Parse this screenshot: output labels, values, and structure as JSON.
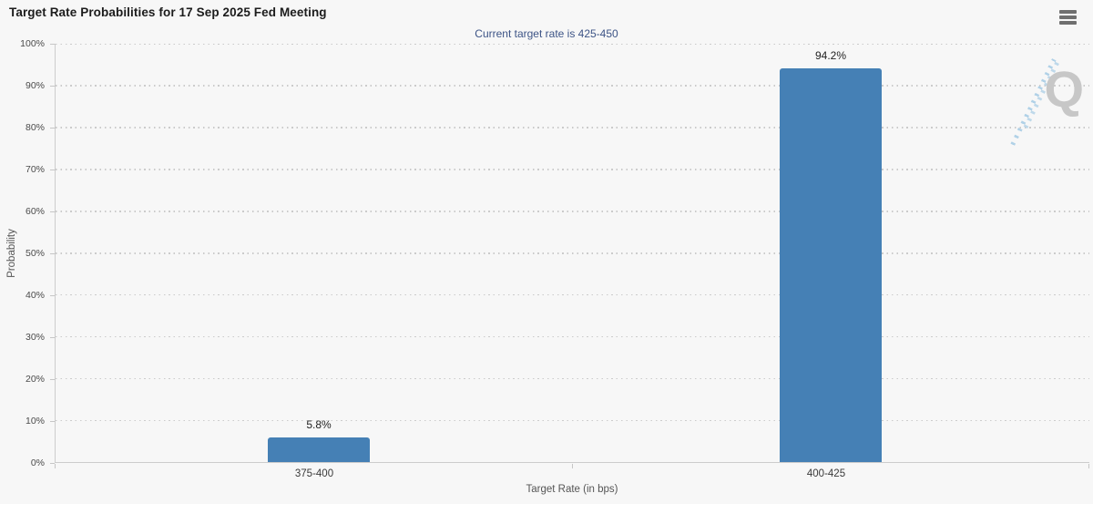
{
  "header": {
    "menu_icon": "hamburger-icon"
  },
  "chart_data": {
    "type": "bar",
    "title": "Target Rate Probabilities for 17 Sep 2025 Fed Meeting",
    "subtitle": "Current target rate is 425-450",
    "categories": [
      "375-400",
      "400-425"
    ],
    "values": [
      5.8,
      94.2
    ],
    "value_labels": [
      "5.8%",
      "94.2%"
    ],
    "xlabel": "Target Rate (in bps)",
    "ylabel": "Probability",
    "ylim": [
      0,
      100
    ],
    "ytick_step": 10,
    "yticks": [
      "0%",
      "10%",
      "20%",
      "30%",
      "40%",
      "50%",
      "60%",
      "70%",
      "80%",
      "90%",
      "100%"
    ],
    "grid": "dotted horizontal gridlines",
    "legend": "none",
    "watermark_letter": "Q"
  },
  "colors": {
    "card_background": "#f7f7f7",
    "bar_fill": "#4580b5",
    "subtitle_text": "#3d5486",
    "title_text": "#1c1c1c",
    "axis_line": "#cccccc",
    "gridline": "#cbcbcb",
    "tick_label": "#4b4b4b",
    "axis_title": "#555555",
    "menu_icon": "#6f6f6f",
    "watermark_q": "#c7c7c7",
    "watermark_dashes": "#b0d1e7"
  }
}
